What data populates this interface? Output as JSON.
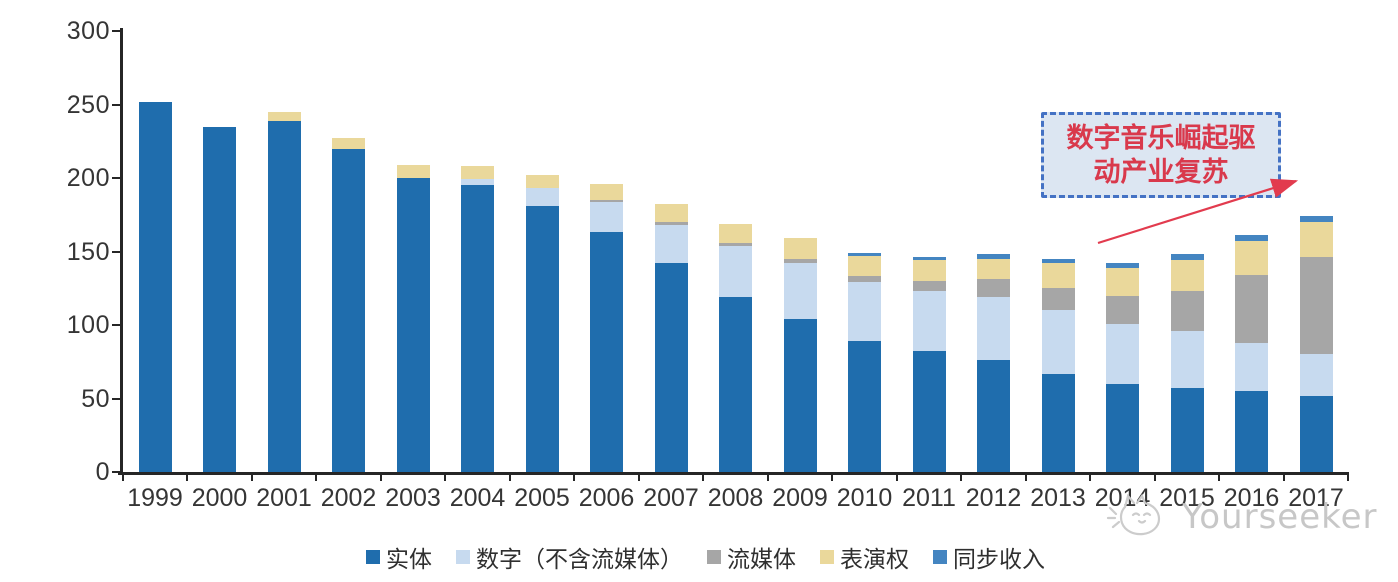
{
  "chart_data": {
    "type": "bar",
    "stacked": true,
    "title": "",
    "xlabel": "",
    "ylabel": "",
    "ylim": [
      0,
      300
    ],
    "ytick_interval": 50,
    "yticks": [
      "0",
      "50",
      "100",
      "150",
      "200",
      "250",
      "300"
    ],
    "grid": false,
    "legend_position": "bottom",
    "categories": [
      "1999",
      "2000",
      "2001",
      "2002",
      "2003",
      "2004",
      "2005",
      "2006",
      "2007",
      "2008",
      "2009",
      "2010",
      "2011",
      "2012",
      "2013",
      "2014",
      "2015",
      "2016",
      "2017"
    ],
    "series": [
      {
        "name": "实体",
        "color": "#1f6dad",
        "values": [
          252,
          235,
          239,
          220,
          200,
          195,
          181,
          163,
          142,
          119,
          104,
          89,
          82,
          76,
          67,
          60,
          57,
          55,
          52
        ]
      },
      {
        "name": "数字（不含流媒体）",
        "color": "#c7daef",
        "values": [
          0,
          0,
          0,
          0,
          0,
          4,
          12,
          21,
          26,
          35,
          38,
          40,
          41,
          43,
          43,
          41,
          39,
          33,
          28
        ]
      },
      {
        "name": "流媒体",
        "color": "#a6a6a6",
        "values": [
          0,
          0,
          0,
          0,
          0,
          0,
          0,
          1,
          2,
          2,
          3,
          4,
          7,
          12,
          15,
          19,
          27,
          46,
          66
        ]
      },
      {
        "name": "表演权",
        "color": "#ead89b",
        "values": [
          0,
          0,
          6,
          7,
          9,
          9,
          9,
          11,
          12,
          13,
          14,
          14,
          14,
          14,
          17,
          19,
          21,
          23,
          24
        ]
      },
      {
        "name": "同步收入",
        "color": "#4485c1",
        "values": [
          0,
          0,
          0,
          0,
          0,
          0,
          0,
          0,
          0,
          0,
          0,
          2,
          2,
          3,
          3,
          3,
          4,
          4,
          4
        ]
      }
    ]
  },
  "annotation": {
    "line1": "数字音乐崛起驱",
    "line2": "动产业复苏",
    "text_color": "#d9394c",
    "box_fill": "#dce6f2",
    "box_border": "#4472c4",
    "arrow_color": "#e23b4e"
  },
  "watermark": {
    "text": "Yourseeker",
    "color": "#c7c7c7"
  },
  "axis": {
    "line_color": "#262626",
    "label_color": "#353535"
  }
}
